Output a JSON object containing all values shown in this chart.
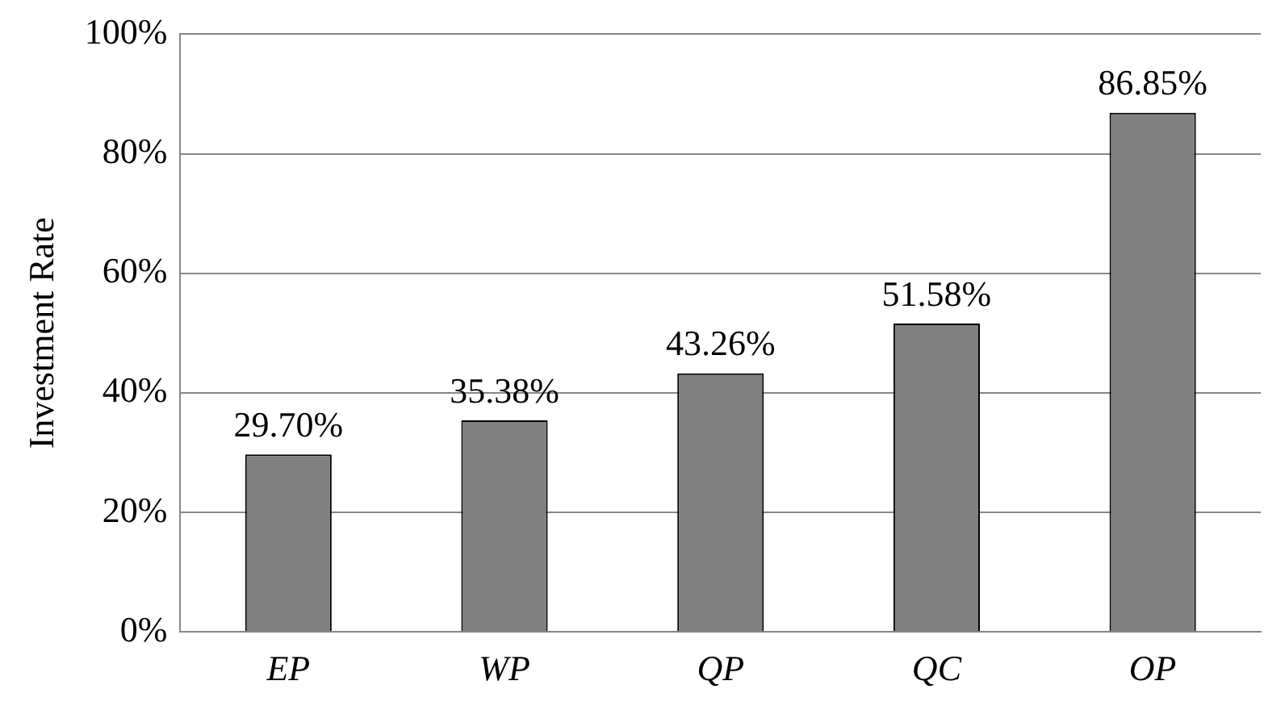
{
  "chart_data": {
    "type": "bar",
    "ylabel": "Investment Rate",
    "categories": [
      "EP",
      "WP",
      "QP",
      "QC",
      "OP"
    ],
    "values": [
      29.7,
      35.38,
      43.26,
      51.58,
      86.85
    ],
    "value_labels": [
      "29.70%",
      "35.38%",
      "43.26%",
      "51.58%",
      "86.85%"
    ],
    "color": "#808080",
    "ylim": [
      0,
      100
    ],
    "yticks": [
      {
        "value": 0,
        "label": "0%"
      },
      {
        "value": 20,
        "label": "20%"
      },
      {
        "value": 40,
        "label": "40%"
      },
      {
        "value": 60,
        "label": "60%"
      },
      {
        "value": 80,
        "label": "80%"
      },
      {
        "value": 100,
        "label": "100%"
      }
    ],
    "grid": "y",
    "legend": false
  }
}
